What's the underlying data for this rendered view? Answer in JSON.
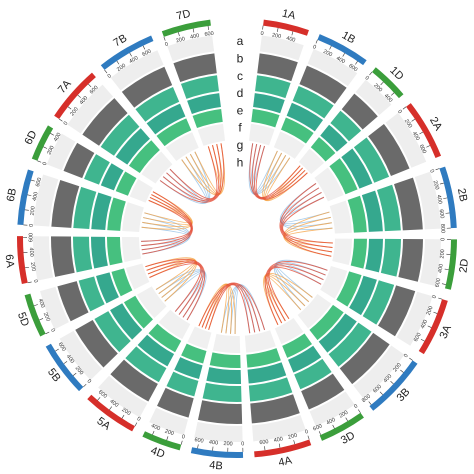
{
  "chart_data": {
    "type": "circos",
    "chromosomes": [
      {
        "name": "1A",
        "length": 594,
        "color": "#d62f2a",
        "ticks": [
          0,
          200,
          400
        ]
      },
      {
        "name": "1B",
        "length": 689,
        "color": "#2f7bc0",
        "ticks": [
          0,
          200,
          400,
          600
        ]
      },
      {
        "name": "1D",
        "length": 495,
        "color": "#3b9e3b",
        "ticks": [
          0,
          200,
          400
        ]
      },
      {
        "name": "2A",
        "length": 780,
        "color": "#d62f2a",
        "ticks": [
          0,
          200,
          400,
          600
        ]
      },
      {
        "name": "2B",
        "length": 801,
        "color": "#2f7bc0",
        "ticks": [
          0,
          200,
          400,
          600,
          800
        ]
      },
      {
        "name": "2D",
        "length": 651,
        "color": "#3b9e3b",
        "ticks": [
          0,
          200,
          400,
          600
        ]
      },
      {
        "name": "3A",
        "length": 750,
        "color": "#d62f2a",
        "ticks": [
          0,
          200,
          400,
          600
        ]
      },
      {
        "name": "3B",
        "length": 830,
        "color": "#2f7bc0",
        "ticks": [
          0,
          200,
          400,
          600,
          800
        ]
      },
      {
        "name": "3D",
        "length": 615,
        "color": "#3b9e3b",
        "ticks": [
          0,
          200,
          400,
          600
        ]
      },
      {
        "name": "4A",
        "length": 744,
        "color": "#d62f2a",
        "ticks": [
          0,
          200,
          400,
          600
        ]
      },
      {
        "name": "4B",
        "length": 673,
        "color": "#2f7bc0",
        "ticks": [
          0,
          200,
          400,
          600
        ]
      },
      {
        "name": "4D",
        "length": 509,
        "color": "#3b9e3b",
        "ticks": [
          0,
          200,
          400
        ]
      },
      {
        "name": "5A",
        "length": 709,
        "color": "#d62f2a",
        "ticks": [
          0,
          200,
          400,
          600
        ]
      },
      {
        "name": "5B",
        "length": 713,
        "color": "#2f7bc0",
        "ticks": [
          0,
          200,
          400,
          600
        ]
      },
      {
        "name": "5D",
        "length": 566,
        "color": "#3b9e3b",
        "ticks": [
          0,
          200,
          400
        ]
      },
      {
        "name": "6A",
        "length": 618,
        "color": "#d62f2a",
        "ticks": [
          0,
          200,
          400,
          600
        ]
      },
      {
        "name": "6B",
        "length": 720,
        "color": "#2f7bc0",
        "ticks": [
          0,
          200,
          400,
          600
        ]
      },
      {
        "name": "6D",
        "length": 473,
        "color": "#3b9e3b",
        "ticks": [
          0,
          200,
          400
        ]
      },
      {
        "name": "7A",
        "length": 736,
        "color": "#d62f2a",
        "ticks": [
          0,
          200,
          400,
          600
        ]
      },
      {
        "name": "7B",
        "length": 750,
        "color": "#2f7bc0",
        "ticks": [
          0,
          200,
          400,
          600
        ]
      },
      {
        "name": "7D",
        "length": 638,
        "color": "#3b9e3b",
        "ticks": [
          0,
          200,
          400,
          600
        ]
      }
    ],
    "track_labels": [
      "a",
      "b",
      "c",
      "d",
      "e",
      "f",
      "g",
      "h"
    ]
  }
}
